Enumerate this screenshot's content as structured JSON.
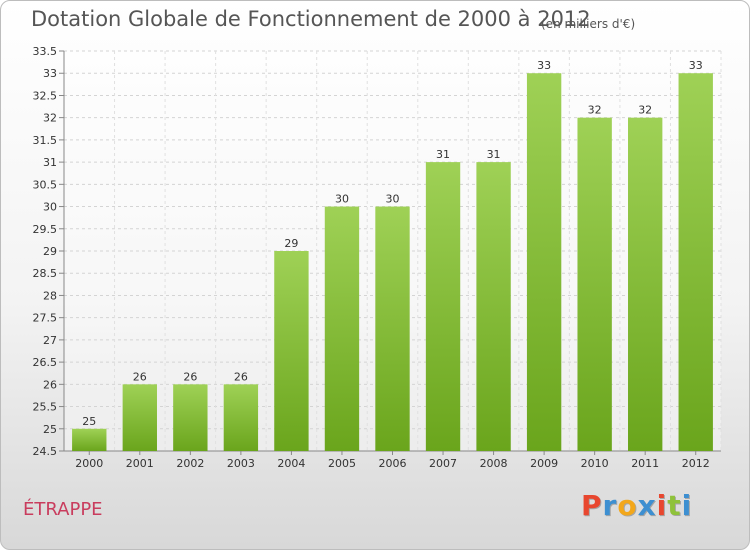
{
  "header": {
    "title": "Dotation Globale de Fonctionnement de 2000 à 2012",
    "units": "(en milliers d'€)"
  },
  "footer": {
    "commune": "ÉTRAPPE",
    "logo_text": "Proxiti",
    "logo_colors": [
      "#e8472f",
      "#3d8fd1",
      "#f2a71b",
      "#3d8fd1",
      "#e8472f",
      "#8fc23a",
      "#3d8fd1"
    ]
  },
  "chart_data": {
    "type": "bar",
    "title": "Dotation Globale de Fonctionnement de 2000 à 2012",
    "subtitle": "(en milliers d'€)",
    "xlabel": "",
    "ylabel": "",
    "categories": [
      "2000",
      "2001",
      "2002",
      "2003",
      "2004",
      "2005",
      "2006",
      "2007",
      "2008",
      "2009",
      "2010",
      "2011",
      "2012"
    ],
    "values": [
      25,
      26,
      26,
      26,
      29,
      30,
      30,
      31,
      31,
      33,
      32,
      32,
      33
    ],
    "ylim": [
      24.5,
      33.5
    ],
    "yticks": [
      24.5,
      25,
      25.5,
      26,
      26.5,
      27,
      27.5,
      28,
      28.5,
      29,
      29.5,
      30,
      30.5,
      31,
      31.5,
      32,
      32.5,
      33,
      33.5
    ],
    "grid": true,
    "bar_color_top": "#9fd156",
    "bar_color_bottom": "#6aa51c"
  }
}
